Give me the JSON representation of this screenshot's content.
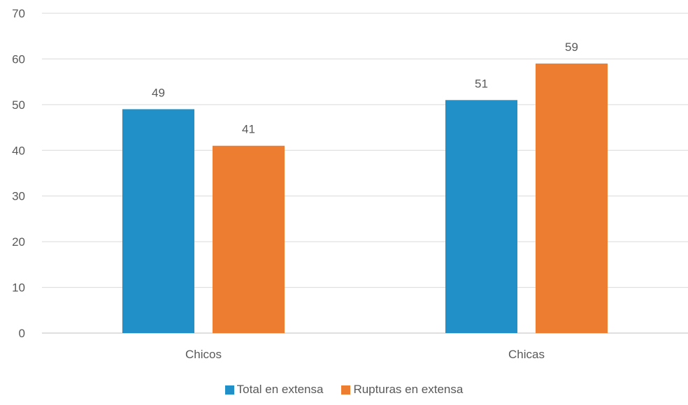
{
  "chart_data": {
    "type": "bar",
    "categories": [
      "Chicos",
      "Chicas"
    ],
    "series": [
      {
        "name": "Total en extensa",
        "values": [
          49,
          51
        ],
        "color": "#2190C9"
      },
      {
        "name": "Rupturas en extensa",
        "values": [
          41,
          59
        ],
        "color": "#ED7D31"
      }
    ],
    "ylim": [
      0,
      70
    ],
    "yticks": [
      0,
      10,
      20,
      30,
      40,
      50,
      60,
      70
    ],
    "grid": true,
    "legend_position": "bottom",
    "data_labels": true
  }
}
